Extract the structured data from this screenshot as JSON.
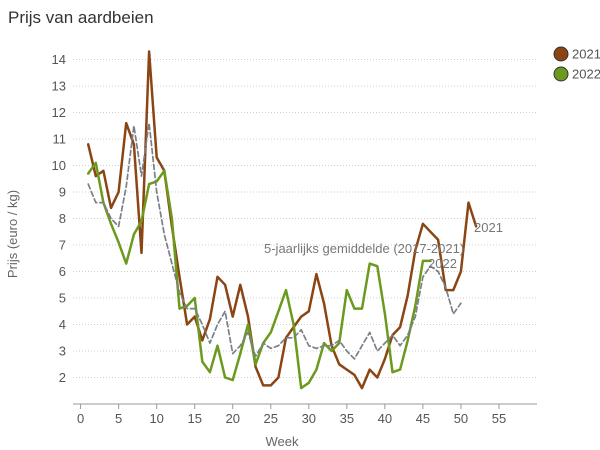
{
  "chart_data": {
    "type": "line",
    "title": "Prijs van aardbeien",
    "xlabel": "Week",
    "ylabel": "Prijs (euro / kg)",
    "xlim": [
      -1,
      60
    ],
    "ylim": [
      1,
      15
    ],
    "x_ticks": [
      0,
      5,
      10,
      15,
      20,
      25,
      30,
      35,
      40,
      45,
      50,
      55
    ],
    "y_ticks": [
      2,
      3,
      4,
      5,
      6,
      7,
      8,
      9,
      10,
      11,
      12,
      13,
      14
    ],
    "grid": "horizontal-dotted",
    "legend_position": "top-right",
    "series": [
      {
        "name": "2021",
        "color": "#8B4513",
        "style": "solid",
        "end_label": "2021",
        "x": [
          1,
          2,
          3,
          4,
          5,
          6,
          7,
          8,
          9,
          10,
          11,
          12,
          13,
          14,
          15,
          16,
          17,
          18,
          19,
          20,
          21,
          22,
          23,
          24,
          25,
          26,
          27,
          28,
          29,
          30,
          31,
          32,
          33,
          34,
          35,
          36,
          37,
          38,
          39,
          40,
          41,
          42,
          43,
          44,
          45,
          46,
          47,
          48,
          49,
          50,
          51,
          52
        ],
        "y": [
          10.8,
          9.6,
          9.8,
          8.4,
          9.0,
          11.6,
          10.8,
          6.7,
          14.3,
          10.3,
          9.8,
          7.7,
          5.8,
          4.0,
          4.3,
          3.4,
          4.2,
          5.8,
          5.5,
          4.3,
          5.5,
          4.3,
          2.4,
          1.7,
          1.7,
          2.0,
          3.5,
          3.9,
          4.3,
          4.5,
          5.9,
          4.8,
          3.2,
          2.5,
          2.3,
          2.1,
          1.6,
          2.3,
          2.0,
          2.7,
          3.6,
          3.9,
          5.1,
          6.8,
          7.8,
          7.5,
          7.2,
          5.3,
          5.3,
          6.0,
          8.6,
          7.7
        ]
      },
      {
        "name": "2022",
        "color": "#6B9A1E",
        "style": "solid",
        "end_label": "2022",
        "x": [
          1,
          2,
          3,
          4,
          5,
          6,
          7,
          8,
          9,
          10,
          11,
          12,
          13,
          14,
          15,
          16,
          17,
          18,
          19,
          20,
          21,
          22,
          23,
          24,
          25,
          26,
          27,
          28,
          29,
          30,
          31,
          32,
          33,
          34,
          35,
          36,
          37,
          38,
          39,
          40,
          41,
          42,
          43,
          44,
          45,
          46
        ],
        "y": [
          9.7,
          10.1,
          8.6,
          7.8,
          7.1,
          6.3,
          7.4,
          7.9,
          9.3,
          9.4,
          9.8,
          8.0,
          4.6,
          4.7,
          5.0,
          2.6,
          2.2,
          3.2,
          2.0,
          1.9,
          2.9,
          4.0,
          2.5,
          3.3,
          3.7,
          4.5,
          5.3,
          4.0,
          1.6,
          1.8,
          2.3,
          3.3,
          3.0,
          3.3,
          5.3,
          4.6,
          4.6,
          6.3,
          6.2,
          4.4,
          2.2,
          2.3,
          3.4,
          4.7,
          6.4,
          6.4
        ]
      },
      {
        "name": "5-jaarlijks gemiddelde (2017-2021)",
        "color": "#7a7f8a",
        "style": "dashed",
        "end_label": "5-jaarlijks gemiddelde (2017-2021)",
        "x": [
          1,
          2,
          3,
          4,
          5,
          6,
          7,
          8,
          9,
          10,
          11,
          12,
          13,
          14,
          15,
          16,
          17,
          18,
          19,
          20,
          21,
          22,
          23,
          24,
          25,
          26,
          27,
          28,
          29,
          30,
          31,
          32,
          33,
          34,
          35,
          36,
          37,
          38,
          39,
          40,
          41,
          42,
          43,
          44,
          45,
          46,
          47,
          48,
          49,
          50
        ],
        "y": [
          9.3,
          8.6,
          8.6,
          8.0,
          7.7,
          9.2,
          11.5,
          9.6,
          11.6,
          9.0,
          7.4,
          6.3,
          5.2,
          4.6,
          4.6,
          4.0,
          3.3,
          4.0,
          4.5,
          2.9,
          3.2,
          3.7,
          2.8,
          3.3,
          3.1,
          3.2,
          3.5,
          3.5,
          3.8,
          3.2,
          3.1,
          3.2,
          3.2,
          3.4,
          3.0,
          2.7,
          3.2,
          3.7,
          3.0,
          3.3,
          3.6,
          3.2,
          3.6,
          4.3,
          5.8,
          6.2,
          6.0,
          5.4,
          4.4,
          4.8
        ]
      }
    ]
  }
}
